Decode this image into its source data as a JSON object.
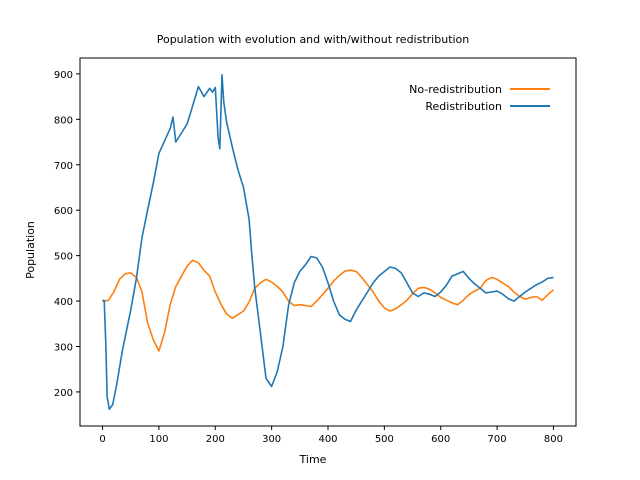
{
  "chart_data": {
    "type": "line",
    "title": "Population with evolution and with/without redistribution",
    "xlabel": "Time",
    "ylabel": "Population",
    "xlim": [
      -40,
      840
    ],
    "ylim": [
      125,
      935
    ],
    "xticks": [
      0,
      100,
      200,
      300,
      400,
      500,
      600,
      700,
      800
    ],
    "yticks": [
      200,
      300,
      400,
      500,
      600,
      700,
      800,
      900
    ],
    "grid": false,
    "legend_position": "top-right",
    "series": [
      {
        "name": "No-redistribution",
        "color": "#ff7f0e",
        "points": [
          [
            0,
            400
          ],
          [
            10,
            401
          ],
          [
            20,
            420
          ],
          [
            30,
            448
          ],
          [
            40,
            460
          ],
          [
            50,
            462
          ],
          [
            60,
            452
          ],
          [
            70,
            420
          ],
          [
            80,
            352
          ],
          [
            90,
            315
          ],
          [
            100,
            290
          ],
          [
            110,
            330
          ],
          [
            120,
            392
          ],
          [
            130,
            432
          ],
          [
            140,
            455
          ],
          [
            150,
            477
          ],
          [
            160,
            490
          ],
          [
            170,
            484
          ],
          [
            180,
            468
          ],
          [
            190,
            455
          ],
          [
            200,
            420
          ],
          [
            210,
            393
          ],
          [
            220,
            372
          ],
          [
            230,
            362
          ],
          [
            240,
            370
          ],
          [
            250,
            378
          ],
          [
            260,
            398
          ],
          [
            270,
            428
          ],
          [
            280,
            440
          ],
          [
            290,
            448
          ],
          [
            300,
            442
          ],
          [
            310,
            432
          ],
          [
            320,
            420
          ],
          [
            330,
            400
          ],
          [
            340,
            390
          ],
          [
            350,
            392
          ],
          [
            360,
            390
          ],
          [
            370,
            388
          ],
          [
            380,
            400
          ],
          [
            390,
            414
          ],
          [
            400,
            428
          ],
          [
            410,
            444
          ],
          [
            420,
            456
          ],
          [
            430,
            466
          ],
          [
            440,
            468
          ],
          [
            450,
            465
          ],
          [
            460,
            452
          ],
          [
            470,
            436
          ],
          [
            480,
            420
          ],
          [
            490,
            400
          ],
          [
            500,
            385
          ],
          [
            510,
            378
          ],
          [
            520,
            383
          ],
          [
            530,
            392
          ],
          [
            540,
            402
          ],
          [
            550,
            416
          ],
          [
            560,
            428
          ],
          [
            570,
            430
          ],
          [
            580,
            426
          ],
          [
            590,
            418
          ],
          [
            600,
            408
          ],
          [
            610,
            402
          ],
          [
            620,
            396
          ],
          [
            630,
            392
          ],
          [
            640,
            402
          ],
          [
            650,
            414
          ],
          [
            660,
            422
          ],
          [
            670,
            428
          ],
          [
            680,
            445
          ],
          [
            690,
            452
          ],
          [
            700,
            448
          ],
          [
            710,
            440
          ],
          [
            720,
            432
          ],
          [
            730,
            420
          ],
          [
            740,
            410
          ],
          [
            750,
            404
          ],
          [
            760,
            408
          ],
          [
            770,
            410
          ],
          [
            780,
            402
          ],
          [
            790,
            414
          ],
          [
            800,
            425
          ]
        ]
      },
      {
        "name": "Redistribution",
        "color": "#1f77b4",
        "points": [
          [
            0,
            402
          ],
          [
            3,
            401
          ],
          [
            6,
            300
          ],
          [
            8,
            190
          ],
          [
            12,
            162
          ],
          [
            18,
            172
          ],
          [
            25,
            215
          ],
          [
            35,
            290
          ],
          [
            50,
            380
          ],
          [
            60,
            450
          ],
          [
            70,
            540
          ],
          [
            80,
            600
          ],
          [
            90,
            660
          ],
          [
            100,
            725
          ],
          [
            110,
            752
          ],
          [
            120,
            780
          ],
          [
            125,
            805
          ],
          [
            130,
            750
          ],
          [
            140,
            770
          ],
          [
            150,
            790
          ],
          [
            160,
            830
          ],
          [
            170,
            872
          ],
          [
            180,
            850
          ],
          [
            190,
            868
          ],
          [
            195,
            860
          ],
          [
            200,
            870
          ],
          [
            205,
            760
          ],
          [
            208,
            735
          ],
          [
            212,
            898
          ],
          [
            215,
            840
          ],
          [
            220,
            795
          ],
          [
            230,
            740
          ],
          [
            240,
            690
          ],
          [
            250,
            650
          ],
          [
            260,
            580
          ],
          [
            265,
            500
          ],
          [
            270,
            430
          ],
          [
            280,
            330
          ],
          [
            290,
            230
          ],
          [
            300,
            212
          ],
          [
            310,
            245
          ],
          [
            320,
            300
          ],
          [
            330,
            390
          ],
          [
            340,
            440
          ],
          [
            350,
            465
          ],
          [
            360,
            480
          ],
          [
            370,
            498
          ],
          [
            380,
            495
          ],
          [
            390,
            475
          ],
          [
            400,
            440
          ],
          [
            410,
            400
          ],
          [
            420,
            370
          ],
          [
            430,
            360
          ],
          [
            440,
            355
          ],
          [
            450,
            380
          ],
          [
            460,
            400
          ],
          [
            470,
            420
          ],
          [
            480,
            440
          ],
          [
            490,
            455
          ],
          [
            500,
            465
          ],
          [
            510,
            475
          ],
          [
            520,
            472
          ],
          [
            530,
            462
          ],
          [
            540,
            440
          ],
          [
            550,
            418
          ],
          [
            560,
            410
          ],
          [
            570,
            418
          ],
          [
            580,
            415
          ],
          [
            590,
            410
          ],
          [
            600,
            420
          ],
          [
            610,
            435
          ],
          [
            620,
            455
          ],
          [
            630,
            460
          ],
          [
            640,
            465
          ],
          [
            650,
            450
          ],
          [
            660,
            438
          ],
          [
            670,
            428
          ],
          [
            680,
            418
          ],
          [
            690,
            420
          ],
          [
            700,
            422
          ],
          [
            710,
            415
          ],
          [
            720,
            405
          ],
          [
            730,
            400
          ],
          [
            740,
            410
          ],
          [
            750,
            420
          ],
          [
            760,
            428
          ],
          [
            770,
            436
          ],
          [
            780,
            442
          ],
          [
            790,
            450
          ],
          [
            800,
            452
          ]
        ]
      }
    ]
  }
}
